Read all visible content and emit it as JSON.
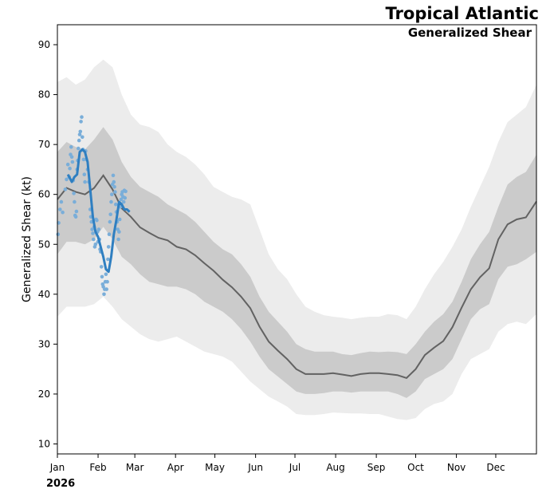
{
  "chart_data": {
    "type": "line",
    "title": "Tropical Atlantic",
    "subtitle": "Generalized Shear",
    "xlabel": "",
    "ylabel": "Generalized Shear (kt)",
    "year_label": "2026",
    "ylim": [
      8,
      94
    ],
    "xlim_day": [
      1,
      366
    ],
    "yticks": [
      10,
      20,
      30,
      40,
      50,
      60,
      70,
      80,
      90
    ],
    "xticks": [
      {
        "day": 1,
        "label": "Jan"
      },
      {
        "day": 32,
        "label": "Feb"
      },
      {
        "day": 60,
        "label": "Mar"
      },
      {
        "day": 91,
        "label": "Apr"
      },
      {
        "day": 121,
        "label": "May"
      },
      {
        "day": 152,
        "label": "Jun"
      },
      {
        "day": 182,
        "label": "Jul"
      },
      {
        "day": 213,
        "label": "Aug"
      },
      {
        "day": 244,
        "label": "Sep"
      },
      {
        "day": 274,
        "label": "Oct"
      },
      {
        "day": 305,
        "label": "Nov"
      },
      {
        "day": 335,
        "label": "Dec"
      }
    ],
    "colors": {
      "outer_band": "#ececec",
      "inner_band": "#cbcbcb",
      "climatology": "#626262",
      "current": "#2f7fc1",
      "samples": "#7aaed9"
    },
    "series": [
      {
        "name": "Climatological mean",
        "day": [
          1,
          8,
          15,
          22,
          29,
          36,
          43,
          50,
          57,
          64,
          71,
          78,
          85,
          92,
          99,
          106,
          113,
          120,
          127,
          134,
          141,
          148,
          155,
          162,
          169,
          176,
          183,
          190,
          197,
          204,
          211,
          218,
          225,
          232,
          239,
          246,
          253,
          260,
          267,
          274,
          281,
          288,
          295,
          302,
          309,
          316,
          323,
          330,
          337,
          344,
          351,
          358,
          366
        ],
        "values": [
          59.0,
          61.3,
          60.5,
          60.0,
          61.3,
          63.8,
          61.0,
          57.2,
          55.5,
          53.4,
          52.3,
          51.3,
          50.8,
          49.5,
          49.0,
          47.8,
          46.2,
          44.7,
          42.9,
          41.4,
          39.5,
          37.2,
          33.5,
          30.5,
          28.7,
          27.0,
          25.0,
          24.0,
          24.0,
          24.0,
          24.2,
          23.9,
          23.6,
          24.0,
          24.2,
          24.2,
          24.0,
          23.8,
          23.2,
          25.0,
          27.8,
          29.3,
          30.6,
          33.4,
          37.3,
          41.0,
          43.4,
          45.2,
          51.0,
          54.0,
          55.0,
          55.4,
          58.6
        ]
      },
      {
        "name": "Inner band upper",
        "day": [
          1,
          8,
          15,
          22,
          29,
          36,
          43,
          50,
          57,
          64,
          71,
          78,
          85,
          92,
          99,
          106,
          113,
          120,
          127,
          134,
          141,
          148,
          155,
          162,
          169,
          176,
          183,
          190,
          197,
          204,
          211,
          218,
          225,
          232,
          239,
          246,
          253,
          260,
          267,
          274,
          281,
          288,
          295,
          302,
          309,
          316,
          323,
          330,
          337,
          344,
          351,
          358,
          366
        ],
        "values": [
          68.5,
          70.5,
          69.5,
          69.0,
          71.0,
          73.5,
          71.0,
          66.5,
          63.5,
          61.5,
          60.5,
          59.5,
          58.0,
          57.0,
          56.0,
          54.5,
          52.5,
          50.5,
          49.0,
          48.0,
          46.0,
          43.5,
          39.5,
          36.5,
          34.5,
          32.5,
          30.0,
          29.0,
          28.5,
          28.5,
          28.5,
          28.0,
          27.8,
          28.2,
          28.5,
          28.4,
          28.5,
          28.4,
          28.0,
          30.0,
          32.5,
          34.5,
          36.0,
          38.5,
          42.5,
          47.0,
          50.0,
          52.5,
          57.5,
          62.0,
          63.5,
          64.5,
          68.0
        ]
      },
      {
        "name": "Inner band lower",
        "day": [
          1,
          8,
          15,
          22,
          29,
          36,
          43,
          50,
          57,
          64,
          71,
          78,
          85,
          92,
          99,
          106,
          113,
          120,
          127,
          134,
          141,
          148,
          155,
          162,
          169,
          176,
          183,
          190,
          197,
          204,
          211,
          218,
          225,
          232,
          239,
          246,
          253,
          260,
          267,
          274,
          281,
          288,
          295,
          302,
          309,
          316,
          323,
          330,
          337,
          344,
          351,
          358,
          366
        ],
        "values": [
          48.0,
          50.5,
          50.5,
          50.0,
          51.0,
          53.5,
          51.0,
          47.5,
          46.0,
          44.0,
          42.5,
          42.0,
          41.5,
          41.5,
          41.0,
          40.0,
          38.5,
          37.5,
          36.5,
          35.0,
          33.0,
          30.5,
          27.5,
          25.0,
          23.5,
          22.0,
          20.5,
          20.0,
          20.0,
          20.2,
          20.5,
          20.5,
          20.3,
          20.5,
          20.5,
          20.5,
          20.5,
          20.0,
          19.2,
          20.5,
          23.0,
          24.0,
          25.0,
          27.0,
          31.0,
          35.0,
          37.0,
          38.0,
          43.0,
          45.5,
          46.0,
          47.0,
          48.5
        ]
      },
      {
        "name": "Outer band upper",
        "day": [
          1,
          8,
          15,
          22,
          29,
          36,
          43,
          50,
          57,
          64,
          71,
          78,
          85,
          92,
          99,
          106,
          113,
          120,
          127,
          134,
          141,
          148,
          155,
          162,
          169,
          176,
          183,
          190,
          197,
          204,
          211,
          218,
          225,
          232,
          239,
          246,
          253,
          260,
          267,
          274,
          281,
          288,
          295,
          302,
          309,
          316,
          323,
          330,
          337,
          344,
          351,
          358,
          366
        ],
        "values": [
          82.5,
          83.5,
          82.0,
          83.0,
          85.5,
          87.0,
          85.5,
          80.0,
          76.0,
          74.0,
          73.5,
          72.5,
          70.0,
          68.5,
          67.5,
          66.0,
          64.0,
          61.5,
          60.5,
          59.5,
          59.0,
          58.0,
          53.0,
          48.0,
          45.0,
          43.0,
          40.0,
          37.5,
          36.5,
          35.8,
          35.5,
          35.3,
          35.0,
          35.3,
          35.5,
          35.5,
          36.0,
          35.8,
          35.0,
          37.5,
          41.0,
          44.0,
          46.5,
          49.5,
          53.0,
          57.5,
          61.5,
          65.5,
          70.5,
          74.5,
          76.0,
          77.5,
          82.0
        ]
      },
      {
        "name": "Outer band lower",
        "day": [
          1,
          8,
          15,
          22,
          29,
          36,
          43,
          50,
          57,
          64,
          71,
          78,
          85,
          92,
          99,
          106,
          113,
          120,
          127,
          134,
          141,
          148,
          155,
          162,
          169,
          176,
          183,
          190,
          197,
          204,
          211,
          218,
          225,
          232,
          239,
          246,
          253,
          260,
          267,
          274,
          281,
          288,
          295,
          302,
          309,
          316,
          323,
          330,
          337,
          344,
          351,
          358,
          366
        ],
        "values": [
          35.5,
          37.5,
          37.5,
          37.5,
          38.0,
          39.5,
          37.5,
          35.0,
          33.5,
          32.0,
          31.0,
          30.5,
          31.0,
          31.5,
          30.5,
          29.5,
          28.5,
          28.0,
          27.5,
          26.5,
          24.5,
          22.5,
          21.0,
          19.5,
          18.5,
          17.5,
          16.0,
          15.8,
          15.8,
          16.0,
          16.3,
          16.2,
          16.1,
          16.1,
          16.0,
          16.0,
          15.5,
          15.0,
          14.8,
          15.2,
          17.0,
          18.0,
          18.5,
          20.0,
          24.0,
          27.0,
          28.0,
          29.0,
          32.5,
          34.0,
          34.5,
          34.0,
          36.0
        ]
      },
      {
        "name": "2026 observed",
        "day": [
          9,
          12,
          14,
          16,
          18,
          20,
          22,
          23,
          24,
          26,
          28,
          30,
          32,
          34,
          36,
          38,
          40,
          42,
          44,
          46,
          48,
          50,
          52,
          54,
          56
        ],
        "values": [
          64.0,
          62.5,
          63.5,
          64.0,
          68.5,
          69.0,
          68.5,
          67.5,
          66.5,
          61.0,
          55.5,
          52.5,
          51.5,
          49.5,
          47.5,
          45.0,
          44.5,
          47.5,
          52.0,
          55.0,
          58.5,
          58.0,
          57.0,
          57.0,
          56.5
        ]
      }
    ],
    "samples": {
      "name": "Ensemble members",
      "points": [
        [
          1.5,
          52.0
        ],
        [
          2,
          54.3
        ],
        [
          3,
          57.0
        ],
        [
          4,
          58.5
        ],
        [
          5,
          56.4
        ],
        [
          7,
          61.0
        ],
        [
          8,
          63.0
        ],
        [
          9,
          66.0
        ],
        [
          10,
          63.5
        ],
        [
          10.5,
          65.2
        ],
        [
          11,
          68.0
        ],
        [
          11.5,
          69.5
        ],
        [
          12,
          67.5
        ],
        [
          12.5,
          66.5
        ],
        [
          13,
          62.8
        ],
        [
          13.5,
          60.2
        ],
        [
          14,
          58.5
        ],
        [
          14.5,
          55.8
        ],
        [
          15,
          55.5
        ],
        [
          15.5,
          56.6
        ],
        [
          16,
          65.0
        ],
        [
          16.5,
          66.8
        ],
        [
          17,
          69.2
        ],
        [
          17.5,
          70.8
        ],
        [
          18,
          72.0
        ],
        [
          18.5,
          72.6
        ],
        [
          19,
          74.6
        ],
        [
          19.5,
          75.5
        ],
        [
          20,
          71.5
        ],
        [
          20.5,
          69.0
        ],
        [
          21,
          67.0
        ],
        [
          21.5,
          64.0
        ],
        [
          22,
          62.5
        ],
        [
          22.5,
          68.7
        ],
        [
          23,
          67.0
        ],
        [
          24,
          65.0
        ],
        [
          25,
          62.5
        ],
        [
          26,
          57.0
        ],
        [
          26.5,
          55.5
        ],
        [
          27,
          54.5
        ],
        [
          27.5,
          53.0
        ],
        [
          28,
          52.2
        ],
        [
          28.5,
          51.0
        ],
        [
          29,
          53.5
        ],
        [
          29.5,
          49.5
        ],
        [
          30,
          50.0
        ],
        [
          30.5,
          55.0
        ],
        [
          31,
          54.8
        ],
        [
          31.5,
          52.5
        ],
        [
          32,
          50.5
        ],
        [
          32.5,
          53.0
        ],
        [
          33,
          51.0
        ],
        [
          33.5,
          49.0
        ],
        [
          34,
          48.5
        ],
        [
          34.5,
          45.5
        ],
        [
          35,
          43.5
        ],
        [
          35.5,
          42.0
        ],
        [
          36,
          41.5
        ],
        [
          36.5,
          40.0
        ],
        [
          37,
          41.0
        ],
        [
          37.5,
          42.5
        ],
        [
          38,
          44.0
        ],
        [
          38.5,
          41.0
        ],
        [
          39,
          42.5
        ],
        [
          39.5,
          47.0
        ],
        [
          40,
          49.5
        ],
        [
          40.5,
          52.0
        ],
        [
          41,
          54.5
        ],
        [
          41.5,
          56.0
        ],
        [
          42,
          58.5
        ],
        [
          42.5,
          60.0
        ],
        [
          43,
          62.0
        ],
        [
          43.5,
          63.8
        ],
        [
          44,
          62.5
        ],
        [
          44.5,
          61.5
        ],
        [
          45,
          60.5
        ],
        [
          45.5,
          58.0
        ],
        [
          46,
          56.5
        ],
        [
          46.5,
          54.5
        ],
        [
          47,
          53.0
        ],
        [
          47.5,
          51.0
        ],
        [
          48,
          52.5
        ],
        [
          48.5,
          55.0
        ],
        [
          49,
          57.5
        ],
        [
          49.5,
          59.0
        ],
        [
          50,
          60.0
        ],
        [
          50.5,
          60.5
        ],
        [
          51,
          59.5
        ],
        [
          51.5,
          58.5
        ],
        [
          52,
          60.8
        ],
        [
          52.5,
          59.3
        ],
        [
          53,
          60.6
        ]
      ]
    }
  }
}
